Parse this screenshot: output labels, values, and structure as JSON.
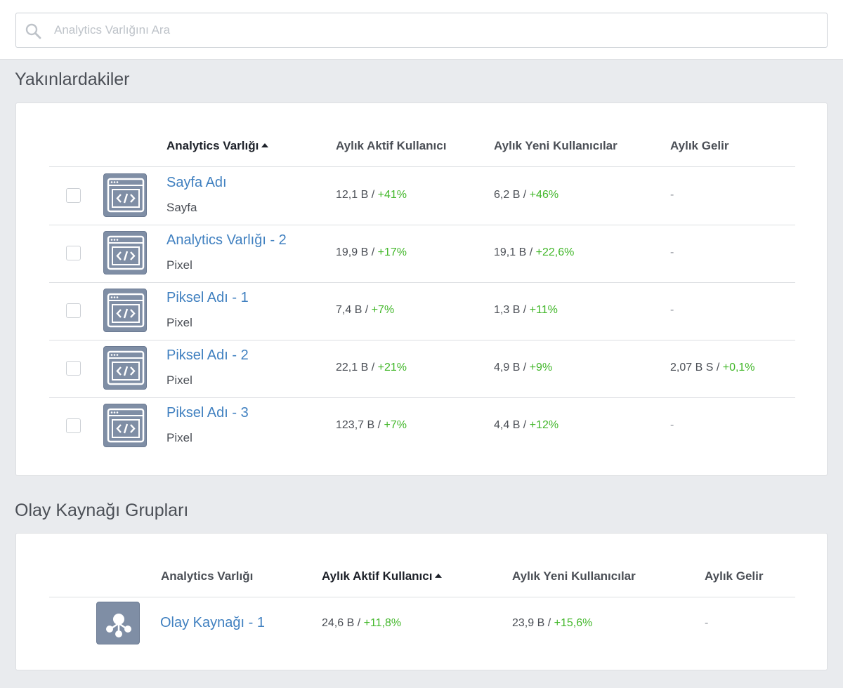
{
  "search": {
    "placeholder": "Analytics Varlığını Ara"
  },
  "nearby": {
    "title": "Yakınlardakiler",
    "headers": {
      "asset": "Analytics Varlığı",
      "mau": "Aylık Aktif Kullanıcı",
      "new_users": "Aylık Yeni Kullanıcılar",
      "revenue": "Aylık Gelir"
    },
    "sorted_column": "asset",
    "rows": [
      {
        "name": "Sayfa Adı",
        "type": "Sayfa",
        "mau": "12,1 B",
        "mau_change": "+41%",
        "new_users": "6,2 B",
        "new_users_change": "+46%",
        "revenue": "-",
        "revenue_change": ""
      },
      {
        "name": "Analytics Varlığı - 2",
        "type": "Pixel",
        "mau": "19,9 B",
        "mau_change": "+17%",
        "new_users": "19,1 B",
        "new_users_change": "+22,6%",
        "revenue": "-",
        "revenue_change": ""
      },
      {
        "name": "Piksel Adı - 1",
        "type": "Pixel",
        "mau": "7,4 B",
        "mau_change": "+7%",
        "new_users": "1,3 B",
        "new_users_change": "+11%",
        "revenue": "-",
        "revenue_change": ""
      },
      {
        "name": "Piksel Adı - 2",
        "type": "Pixel",
        "mau": "22,1 B",
        "mau_change": "+21%",
        "new_users": "4,9 B",
        "new_users_change": "+9%",
        "revenue": "2,07 B S",
        "revenue_change": "+0,1%"
      },
      {
        "name": "Piksel Adı - 3",
        "type": "Pixel",
        "mau": "123,7 B",
        "mau_change": "+7%",
        "new_users": "4,4 B",
        "new_users_change": "+12%",
        "revenue": "-",
        "revenue_change": ""
      }
    ]
  },
  "event_groups": {
    "title": "Olay Kaynağı Grupları",
    "headers": {
      "asset": "Analytics Varlığı",
      "mau": "Aylık Aktif Kullanıcı",
      "new_users": "Aylık Yeni Kullanıcılar",
      "revenue": "Aylık Gelir"
    },
    "sorted_column": "mau",
    "rows": [
      {
        "name": "Olay Kaynağı - 1",
        "mau": "24,6 B",
        "mau_change": "+11,8%",
        "new_users": "23,9 B",
        "new_users_change": "+15,6%",
        "revenue": "-"
      }
    ]
  },
  "colors": {
    "link": "#4080c0",
    "positive": "#42b72a",
    "icon_bg": "#7f8ea5",
    "page_bg": "#e9ebee"
  },
  "icons": {
    "search": "search-icon",
    "pixel": "code-window-icon",
    "group": "event-source-group-icon"
  }
}
